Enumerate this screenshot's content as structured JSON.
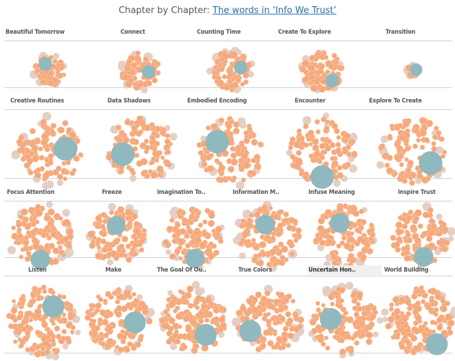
{
  "header": {
    "prefix": "Chapter by Chapter:",
    "link_text": "The words in ‘Info We Trust’"
  },
  "colors": {
    "word": "#f5a87a",
    "word_stroke": "#f8c4a4",
    "rare_word": "#e3cfc5",
    "highlight": "#8fb8bf",
    "header_link": "#1f6fa8"
  },
  "chart_data": {
    "type": "bubble-cluster",
    "rows": [
      [
        {
          "title": "Beautiful Tomorrow",
          "size": 0.62,
          "highlight": 0.22,
          "hx": -0.25,
          "hy": -0.42
        },
        {
          "title": "Connect",
          "size": 0.78,
          "highlight": 0.22,
          "hx": 0.4,
          "hy": 0.05
        },
        {
          "title": "Counting Time",
          "size": 0.82,
          "highlight": 0.22,
          "hx": 0.45,
          "hy": -0.15
        },
        {
          "title": "Create To Explore",
          "size": 0.82,
          "highlight": 0.22,
          "hx": 0.47,
          "hy": 0.45
        },
        {
          "title": "Transition",
          "size": 0.22,
          "highlight": 0.2,
          "hx": 0.55,
          "hy": -0.2
        }
      ],
      [
        {
          "title": "Creative Routines",
          "size": 1.0,
          "highlight": 0.28,
          "hx": 0.45,
          "hy": -0.05
        },
        {
          "title": "Data Shadows",
          "size": 1.0,
          "highlight": 0.28,
          "hx": -0.5,
          "hy": 0.1
        },
        {
          "title": "Embodied Encoding",
          "size": 1.0,
          "highlight": 0.28,
          "hx": -0.4,
          "hy": -0.25
        },
        {
          "title": "Encounter",
          "size": 1.0,
          "highlight": 0.28,
          "hx": 0.0,
          "hy": 0.75
        },
        {
          "title": "Explore To Create",
          "size": 1.0,
          "highlight": 0.28,
          "hx": 0.5,
          "hy": 0.35
        }
      ],
      [
        {
          "title": "Focus Attention",
          "size": 1.08,
          "highlight": 0.27,
          "hx": -0.05,
          "hy": 0.72
        },
        {
          "title": "Freeze",
          "size": 1.0,
          "highlight": 0.26,
          "hx": -0.05,
          "hy": -0.35
        },
        {
          "title": "Imagination To..",
          "size": 1.05,
          "highlight": 0.27,
          "hx": 0.05,
          "hy": 0.7
        },
        {
          "title": "Information M..",
          "size": 1.08,
          "highlight": 0.27,
          "hx": -0.12,
          "hy": -0.35
        },
        {
          "title": "Infuse Meaning",
          "size": 1.08,
          "highlight": 0.27,
          "hx": -0.15,
          "hy": -0.4
        },
        {
          "title": "Inspire Trust",
          "size": 1.0,
          "highlight": 0.27,
          "hx": 0.1,
          "hy": 0.68
        }
      ],
      [
        {
          "title": "Listen",
          "size": 1.22,
          "highlight": 0.3,
          "hx": 0.3,
          "hy": -0.38
        },
        {
          "title": "Make",
          "size": 1.12,
          "highlight": 0.3,
          "hx": 0.5,
          "hy": 0.05
        },
        {
          "title": "The Goal Of Ou..",
          "size": 1.15,
          "highlight": 0.3,
          "hx": 0.35,
          "hy": 0.4
        },
        {
          "title": "True Colors",
          "size": 1.12,
          "highlight": 0.3,
          "hx": -0.55,
          "hy": 0.3
        },
        {
          "title": "Uncertain Hon..",
          "size": 1.15,
          "highlight": 0.3,
          "hx": -0.4,
          "hy": -0.05
        },
        {
          "title": "World Building",
          "size": 1.18,
          "highlight": 0.3,
          "hx": 0.45,
          "hy": 0.65
        }
      ]
    ]
  }
}
